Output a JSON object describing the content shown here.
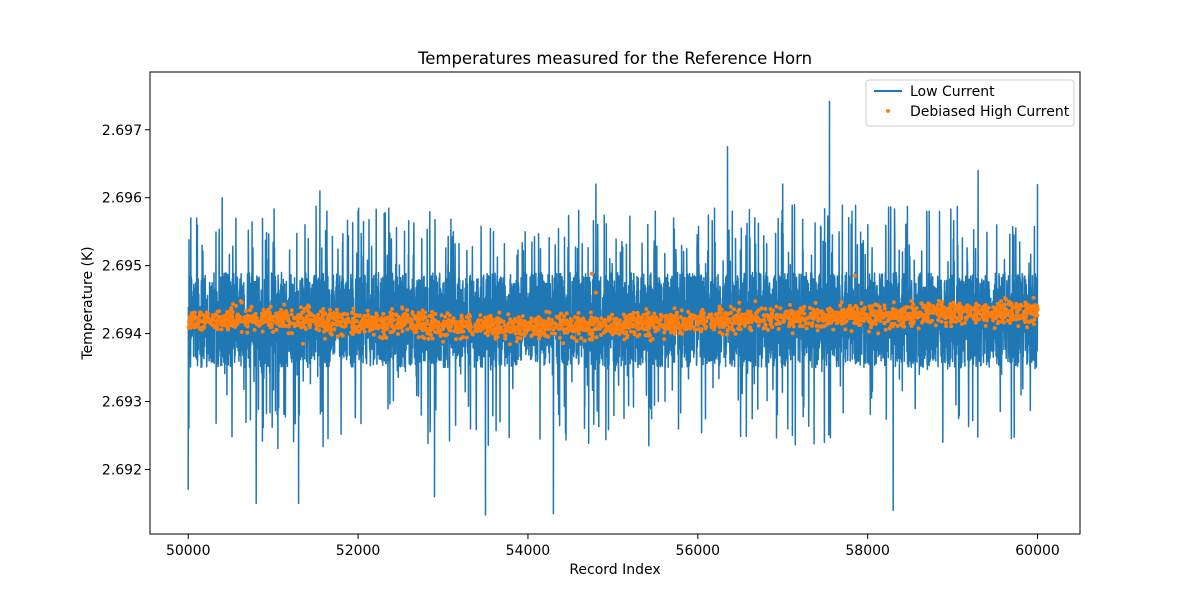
{
  "chart_data": {
    "type": "line",
    "title": "Temperatures measured for the Reference Horn",
    "xlabel": "Record Index",
    "ylabel": "Temperature (K)",
    "xlim": [
      49550,
      60500
    ],
    "ylim": [
      2.69105,
      2.69785
    ],
    "x_ticks": [
      50000,
      52000,
      54000,
      56000,
      58000,
      60000
    ],
    "x_tick_labels": [
      "50000",
      "52000",
      "54000",
      "56000",
      "58000",
      "60000"
    ],
    "y_ticks": [
      2.692,
      2.693,
      2.694,
      2.695,
      2.696,
      2.697
    ],
    "y_tick_labels": [
      "2.692",
      "2.693",
      "2.694",
      "2.695",
      "2.696",
      "2.697"
    ],
    "grid": false,
    "legend_position": "top-right",
    "series": [
      {
        "name": "Low Current",
        "kind": "line",
        "color": "#1f77b4",
        "x_range": [
          50000,
          60000
        ],
        "typical_band": [
          2.6935,
          2.6949
        ],
        "min": 2.69133,
        "max": 2.69742,
        "spikes": [
          {
            "x": 50000,
            "y": 2.6917
          },
          {
            "x": 50100,
            "y": 2.6957
          },
          {
            "x": 50400,
            "y": 2.696
          },
          {
            "x": 50800,
            "y": 2.6915
          },
          {
            "x": 51300,
            "y": 2.6915
          },
          {
            "x": 51550,
            "y": 2.6961
          },
          {
            "x": 52000,
            "y": 2.6958
          },
          {
            "x": 52900,
            "y": 2.6916
          },
          {
            "x": 53500,
            "y": 2.69133
          },
          {
            "x": 54300,
            "y": 2.69135
          },
          {
            "x": 54800,
            "y": 2.6962
          },
          {
            "x": 55500,
            "y": 2.6958
          },
          {
            "x": 56350,
            "y": 2.69675
          },
          {
            "x": 57000,
            "y": 2.6962
          },
          {
            "x": 57550,
            "y": 2.69742
          },
          {
            "x": 58300,
            "y": 2.6914
          },
          {
            "x": 59300,
            "y": 2.6964
          },
          {
            "x": 60000,
            "y": 2.6962
          }
        ]
      },
      {
        "name": "Debiased High Current",
        "kind": "scatter",
        "color": "#ff7f0e",
        "x_range": [
          50000,
          60000
        ],
        "trend": [
          {
            "x": 50000,
            "y": 2.69418
          },
          {
            "x": 51000,
            "y": 2.69422
          },
          {
            "x": 52000,
            "y": 2.69418
          },
          {
            "x": 53000,
            "y": 2.69412
          },
          {
            "x": 54000,
            "y": 2.6941
          },
          {
            "x": 55000,
            "y": 2.69412
          },
          {
            "x": 56000,
            "y": 2.69418
          },
          {
            "x": 57000,
            "y": 2.69425
          },
          {
            "x": 58000,
            "y": 2.69425
          },
          {
            "x": 59000,
            "y": 2.6943
          },
          {
            "x": 60000,
            "y": 2.69432
          }
        ],
        "spread": 0.00015,
        "outliers": [
          {
            "x": 54750,
            "y": 2.69488
          },
          {
            "x": 54800,
            "y": 2.6946
          },
          {
            "x": 57850,
            "y": 2.69485
          },
          {
            "x": 51350,
            "y": 2.69385
          },
          {
            "x": 53000,
            "y": 2.69388
          }
        ]
      }
    ]
  }
}
